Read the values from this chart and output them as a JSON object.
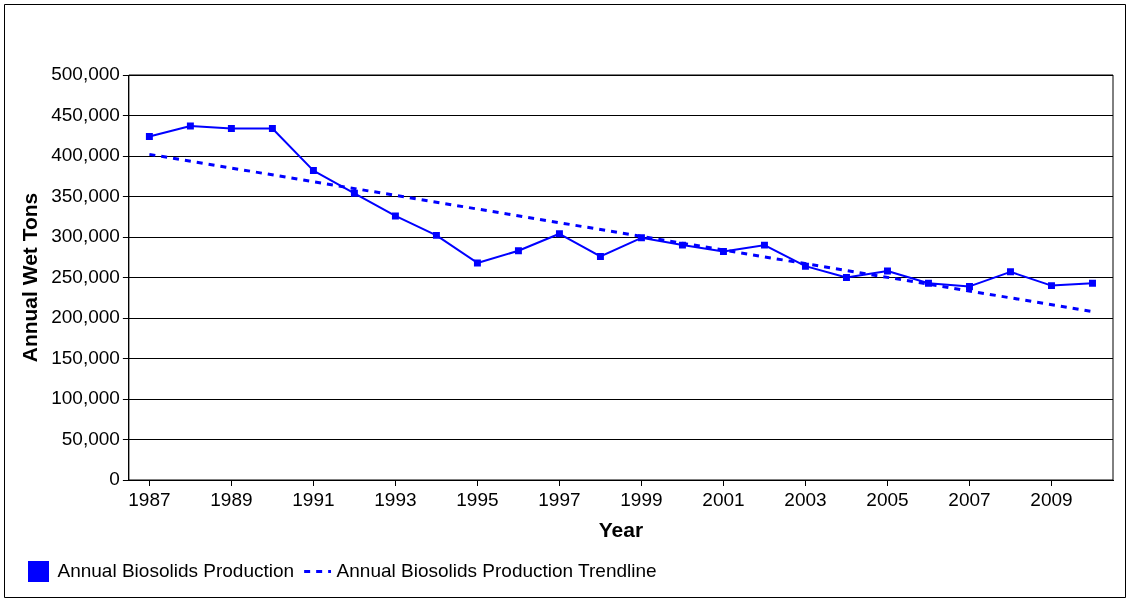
{
  "chart_data": {
    "type": "line",
    "xlabel": "Year",
    "ylabel": "Annual Wet Tons",
    "x": [
      1987,
      1988,
      1989,
      1990,
      1991,
      1992,
      1993,
      1994,
      1995,
      1996,
      1997,
      1998,
      1999,
      2000,
      2001,
      2002,
      2003,
      2004,
      2005,
      2006,
      2007,
      2008,
      2009,
      2010
    ],
    "series": [
      {
        "name": "Annual Biosolids Production",
        "color": "#0000ff",
        "marker": "square",
        "line_style": "solid",
        "values": [
          424000,
          437000,
          434000,
          434000,
          382000,
          354000,
          326000,
          302000,
          268000,
          283000,
          304000,
          276000,
          299000,
          290000,
          282000,
          290000,
          264000,
          250000,
          258000,
          243000,
          239000,
          257000,
          240000,
          243000
        ]
      },
      {
        "name": "Annual Biosolids Production Trendline",
        "color": "#0000ff",
        "marker": "none",
        "line_style": "dashed",
        "x": [
          1987,
          2010
        ],
        "values": [
          402000,
          208000
        ]
      }
    ],
    "xlim": [
      1986.5,
      2010.5
    ],
    "xticks": [
      1987,
      1989,
      1991,
      1993,
      1995,
      1997,
      1999,
      2001,
      2003,
      2005,
      2007,
      2009
    ],
    "ylim": [
      0,
      500000
    ],
    "yticks": [
      0,
      {
        "value": 50000,
        "label": "50,000"
      },
      {
        "value": 100000,
        "label": "100,000"
      },
      {
        "value": 150000,
        "label": "150,000"
      },
      {
        "value": 200000,
        "label": "200,000"
      },
      {
        "value": 250000,
        "label": "250,000"
      },
      {
        "value": 300000,
        "label": "300,000"
      },
      {
        "value": 350000,
        "label": "350,000"
      },
      {
        "value": 400000,
        "label": "400,000"
      },
      {
        "value": 450000,
        "label": "450,000"
      },
      {
        "value": 500000,
        "label": "500,000"
      }
    ],
    "grid": "y",
    "legend": "bottom"
  }
}
